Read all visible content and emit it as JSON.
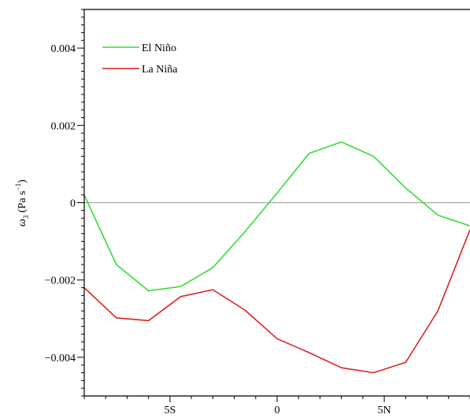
{
  "chart_data": {
    "type": "line",
    "ylabel": "ω3 (Pa s⁻¹)",
    "ylabel_symbol": "ω",
    "ylabel_subscript": "3",
    "ylabel_unit_open": " (Pa s",
    "ylabel_unit_exp": "−1",
    "ylabel_unit_close": ")",
    "xlabel": "",
    "xlim": [
      -9,
      9
    ],
    "ylim": [
      -0.005,
      0.005
    ],
    "x_ticks": [
      {
        "value": -5,
        "label": "5S"
      },
      {
        "value": 0,
        "label": "0"
      },
      {
        "value": 5,
        "label": "5N"
      }
    ],
    "y_ticks": [
      {
        "value": 0.004,
        "label": "0.004"
      },
      {
        "value": 0.002,
        "label": "0.002"
      },
      {
        "value": 0,
        "label": "0"
      },
      {
        "value": -0.002,
        "label": "−0.002"
      },
      {
        "value": -0.004,
        "label": "−0.004"
      }
    ],
    "zero_line": true,
    "legend_position": "top-left",
    "series": [
      {
        "name": "El Niño",
        "color": "#33dd33",
        "points": [
          [
            -9,
            0.0002
          ],
          [
            -7.5,
            -0.0016
          ],
          [
            -6,
            -0.00228
          ],
          [
            -4.5,
            -0.00217
          ],
          [
            -3,
            -0.00168
          ],
          [
            -1.5,
            -0.00075
          ],
          [
            0,
            0.00025
          ],
          [
            1.5,
            0.00128
          ],
          [
            3,
            0.00157
          ],
          [
            4.5,
            0.0012
          ],
          [
            6,
            0.00038
          ],
          [
            7.5,
            -0.00032
          ],
          [
            9,
            -0.0006
          ]
        ]
      },
      {
        "name": "La Niña",
        "color": "#dd2222",
        "points": [
          [
            -9,
            -0.0022
          ],
          [
            -7.5,
            -0.00298
          ],
          [
            -6,
            -0.00305
          ],
          [
            -4.5,
            -0.00243
          ],
          [
            -3,
            -0.00225
          ],
          [
            -1.5,
            -0.00278
          ],
          [
            0,
            -0.00352
          ],
          [
            1.5,
            -0.00388
          ],
          [
            3,
            -0.00427
          ],
          [
            4.5,
            -0.0044
          ],
          [
            6,
            -0.00413
          ],
          [
            7.5,
            -0.0028
          ],
          [
            9,
            -0.0007
          ]
        ]
      }
    ]
  }
}
